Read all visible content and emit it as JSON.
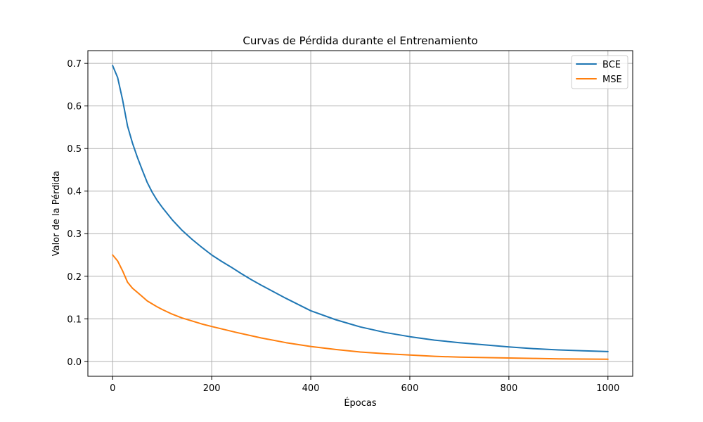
{
  "chart_data": {
    "type": "line",
    "title": "Curvas de Pérdida durante el Entrenamiento",
    "xlabel": "Épocas",
    "ylabel": "Valor de la Pérdida",
    "xlim": [
      -50,
      1050
    ],
    "ylim": [
      -0.035,
      0.73
    ],
    "xticks": [
      0,
      200,
      400,
      600,
      800,
      1000
    ],
    "yticks": [
      0.0,
      0.1,
      0.2,
      0.3,
      0.4,
      0.5,
      0.6,
      0.7
    ],
    "xtick_labels": [
      "0",
      "200",
      "400",
      "600",
      "800",
      "1000"
    ],
    "ytick_labels": [
      "0.0",
      "0.1",
      "0.2",
      "0.3",
      "0.4",
      "0.5",
      "0.6",
      "0.7"
    ],
    "grid": true,
    "legend_position": "top-right",
    "series": [
      {
        "name": "BCE",
        "color": "#1f77b4",
        "x": [
          0,
          10,
          20,
          30,
          40,
          50,
          60,
          70,
          80,
          90,
          100,
          120,
          140,
          160,
          180,
          200,
          220,
          240,
          260,
          280,
          300,
          350,
          400,
          450,
          500,
          550,
          600,
          650,
          700,
          750,
          800,
          850,
          900,
          950,
          1000
        ],
        "y": [
          0.695,
          0.667,
          0.615,
          0.553,
          0.513,
          0.479,
          0.449,
          0.42,
          0.397,
          0.378,
          0.362,
          0.333,
          0.308,
          0.287,
          0.268,
          0.25,
          0.235,
          0.221,
          0.206,
          0.192,
          0.179,
          0.148,
          0.119,
          0.098,
          0.081,
          0.068,
          0.058,
          0.05,
          0.044,
          0.039,
          0.034,
          0.03,
          0.027,
          0.025,
          0.023
        ]
      },
      {
        "name": "MSE",
        "color": "#ff7f0e",
        "x": [
          0,
          10,
          20,
          30,
          40,
          50,
          60,
          70,
          80,
          90,
          100,
          120,
          140,
          160,
          180,
          200,
          250,
          300,
          350,
          400,
          450,
          500,
          550,
          600,
          650,
          700,
          750,
          800,
          850,
          900,
          950,
          1000
        ],
        "y": [
          0.25,
          0.236,
          0.213,
          0.186,
          0.172,
          0.162,
          0.152,
          0.142,
          0.135,
          0.128,
          0.122,
          0.111,
          0.102,
          0.095,
          0.088,
          0.082,
          0.068,
          0.055,
          0.044,
          0.035,
          0.028,
          0.022,
          0.018,
          0.015,
          0.012,
          0.01,
          0.009,
          0.008,
          0.007,
          0.006,
          0.0055,
          0.005
        ]
      }
    ]
  }
}
